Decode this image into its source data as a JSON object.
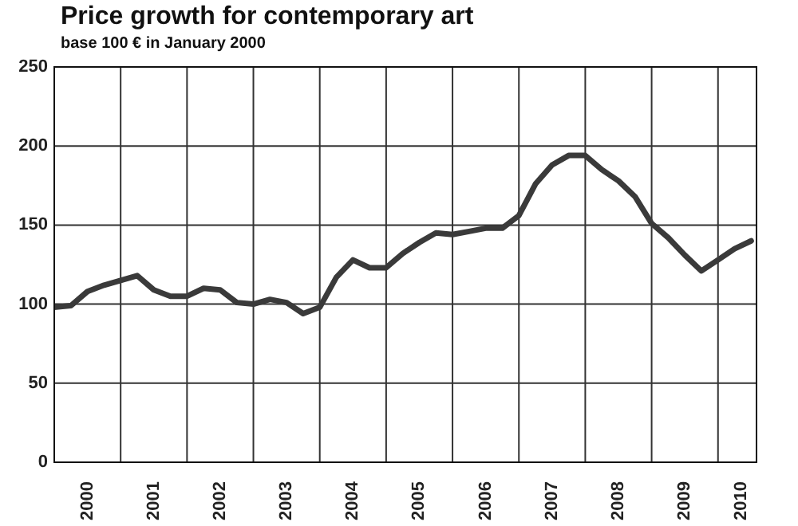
{
  "chart_data": {
    "type": "line",
    "title": "Price growth for contemporary art",
    "subtitle": "base 100 € in January 2000",
    "x": [
      2000,
      2000.25,
      2000.5,
      2000.75,
      2001,
      2001.25,
      2001.5,
      2001.75,
      2002,
      2002.25,
      2002.5,
      2002.75,
      2003,
      2003.25,
      2003.5,
      2003.75,
      2004,
      2004.25,
      2004.5,
      2004.75,
      2005,
      2005.25,
      2005.5,
      2005.75,
      2006,
      2006.25,
      2006.5,
      2006.75,
      2007,
      2007.25,
      2007.5,
      2007.75,
      2008,
      2008.25,
      2008.5,
      2008.75,
      2009,
      2009.25,
      2009.5,
      2009.75,
      2010,
      2010.25,
      2010.5
    ],
    "series": [
      {
        "color": "#3a3a3a",
        "values": [
          98,
          99,
          108,
          112,
          115,
          118,
          109,
          105,
          105,
          110,
          109,
          101,
          100,
          103,
          101,
          94,
          98,
          117,
          128,
          123,
          123,
          132,
          139,
          145,
          144,
          146,
          148,
          148,
          156,
          176,
          188,
          194,
          194,
          185,
          178,
          168,
          151,
          142,
          131,
          121,
          128,
          135,
          140
        ]
      }
    ],
    "xlim": [
      2000,
      2010.58
    ],
    "xticks": [
      {
        "value": 2000.5,
        "label": "2000"
      },
      {
        "value": 2001,
        "label": null
      },
      {
        "value": 2001.5,
        "label": "2001"
      },
      {
        "value": 2002,
        "label": null
      },
      {
        "value": 2002.5,
        "label": "2002"
      },
      {
        "value": 2003,
        "label": null
      },
      {
        "value": 2003.5,
        "label": "2003"
      },
      {
        "value": 2004,
        "label": null
      },
      {
        "value": 2004.5,
        "label": "2004"
      },
      {
        "value": 2005,
        "label": null
      },
      {
        "value": 2005.5,
        "label": "2005"
      },
      {
        "value": 2006,
        "label": null
      },
      {
        "value": 2006.5,
        "label": "2006"
      },
      {
        "value": 2007,
        "label": null
      },
      {
        "value": 2007.5,
        "label": "2007"
      },
      {
        "value": 2008,
        "label": null
      },
      {
        "value": 2008.5,
        "label": "2008"
      },
      {
        "value": 2009,
        "label": null
      },
      {
        "value": 2009.5,
        "label": "2009"
      },
      {
        "value": 2010,
        "label": null
      },
      {
        "value": 2010.35,
        "label": "2010"
      }
    ],
    "ylim": [
      0,
      250
    ],
    "yticks": [
      0,
      50,
      100,
      150,
      200,
      250
    ],
    "grid": true,
    "marker": "none",
    "line_style": "solid"
  }
}
